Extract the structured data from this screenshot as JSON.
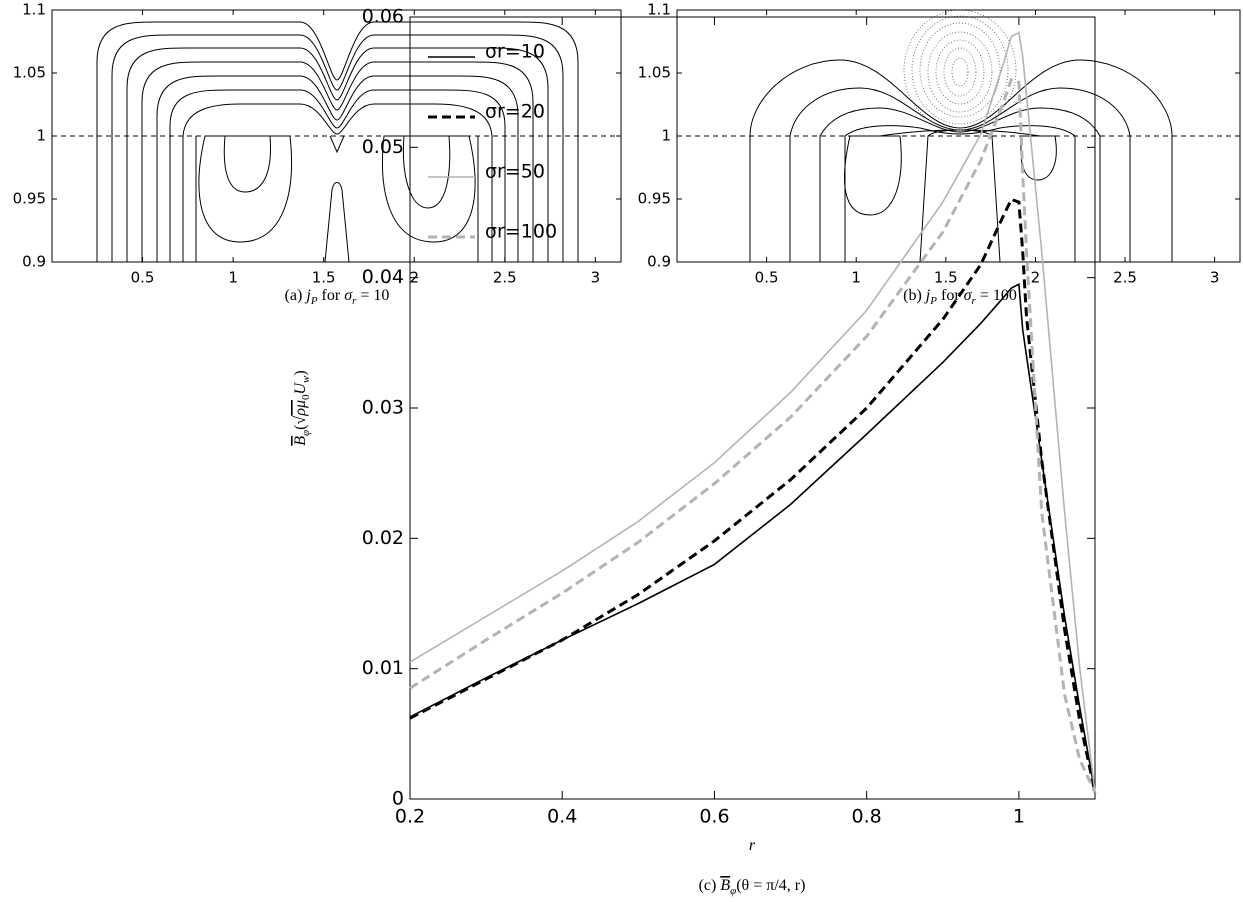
{
  "chart_data": [
    {
      "type": "contour",
      "xlim": [
        0,
        3.1416
      ],
      "ylim": [
        0.9,
        1.1
      ],
      "xticks": [
        0.5,
        1,
        1.5,
        2,
        2.5,
        3
      ],
      "yticks": [
        0.9,
        0.95,
        1,
        1.05,
        1.1
      ],
      "hline": 1,
      "caption": [
        "(a) ",
        "j",
        "P",
        " for ",
        "σ",
        "r",
        " = 10"
      ]
    },
    {
      "type": "contour",
      "xlim": [
        0,
        3.1416
      ],
      "ylim": [
        0.9,
        1.1
      ],
      "xticks": [
        0.5,
        1,
        1.5,
        2,
        2.5,
        3
      ],
      "yticks": [
        0.9,
        0.95,
        1,
        1.05,
        1.1
      ],
      "hline": 1,
      "caption": [
        "(b) ",
        "j",
        "P",
        " for ",
        "σ",
        "r",
        " = 100"
      ]
    },
    {
      "type": "line",
      "xlim": [
        0.2,
        1.1
      ],
      "ylim": [
        0,
        0.06
      ],
      "xticks": [
        0.2,
        0.4,
        0.6,
        0.8,
        1
      ],
      "yticks": [
        0,
        0.01,
        0.02,
        0.03,
        0.04,
        0.05,
        0.06
      ],
      "xlabel": "r",
      "ylabel": [
        "B",
        "φ",
        "(",
        "√",
        "ρμ",
        "0",
        "U",
        "w",
        ")"
      ],
      "caption": [
        "(c) ",
        "B",
        "φ",
        "(θ = π/4, r)"
      ],
      "legend": "upper left",
      "x": [
        0.2,
        0.3,
        0.4,
        0.5,
        0.6,
        0.7,
        0.8,
        0.9,
        0.95,
        0.98,
        0.99,
        1.0,
        1.005,
        1.01,
        1.03,
        1.06,
        1.08,
        1.1
      ],
      "series": [
        {
          "name": "σr=10",
          "color": "#000000",
          "style": "solid",
          "values": [
            0.0063,
            0.0093,
            0.0122,
            0.015,
            0.018,
            0.0226,
            0.028,
            0.0335,
            0.0365,
            0.0385,
            0.0392,
            0.0395,
            0.036,
            0.034,
            0.026,
            0.014,
            0.007,
            0.0005
          ]
        },
        {
          "name": "σr=20",
          "color": "#000000",
          "style": "dashed",
          "values": [
            0.0062,
            0.0092,
            0.0122,
            0.0157,
            0.0198,
            0.0245,
            0.03,
            0.0368,
            0.041,
            0.0448,
            0.046,
            0.0458,
            0.042,
            0.037,
            0.026,
            0.013,
            0.006,
            0.0005
          ]
        },
        {
          "name": "σr=50",
          "color": "#b3b3b3",
          "style": "solid",
          "values": [
            0.0105,
            0.014,
            0.0175,
            0.0213,
            0.0258,
            0.0312,
            0.0375,
            0.0458,
            0.051,
            0.0565,
            0.0585,
            0.0588,
            0.057,
            0.054,
            0.042,
            0.022,
            0.01,
            0.0005
          ]
        },
        {
          "name": "σr=100",
          "color": "#b3b3b3",
          "style": "dashed",
          "values": [
            0.0085,
            0.0122,
            0.0158,
            0.0197,
            0.0242,
            0.0293,
            0.0355,
            0.0435,
            0.049,
            0.0535,
            0.0552,
            0.055,
            0.048,
            0.042,
            0.022,
            0.008,
            0.003,
            0.0005
          ]
        }
      ]
    }
  ]
}
